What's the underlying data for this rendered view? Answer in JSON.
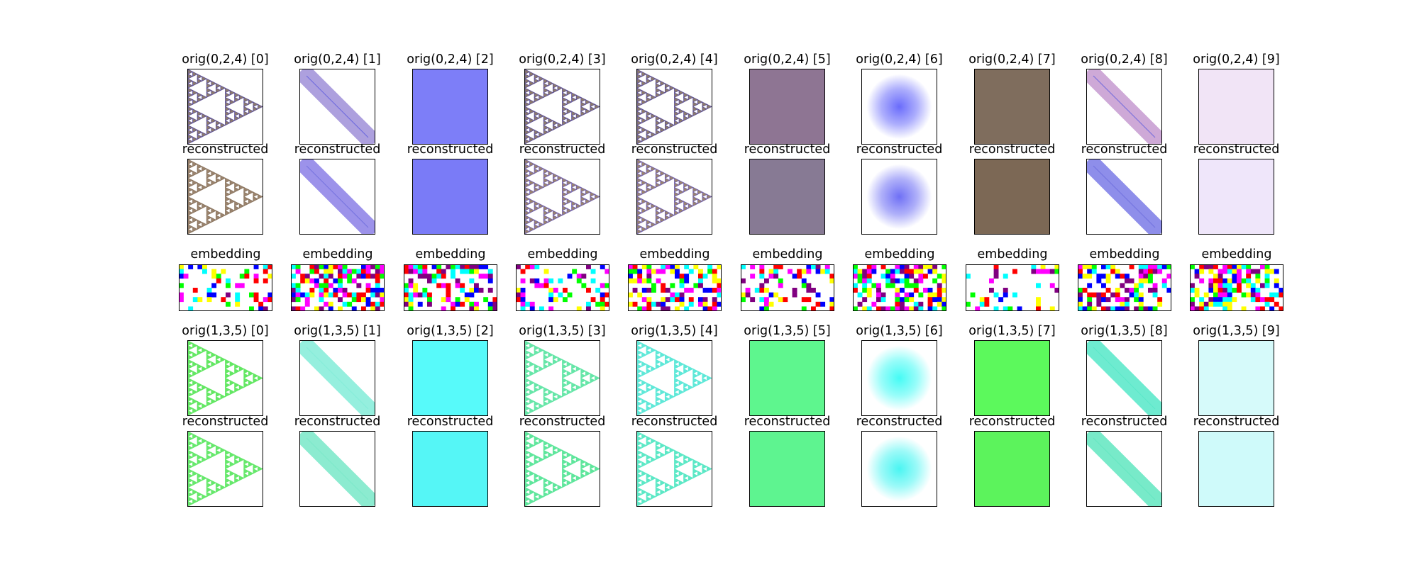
{
  "figure": {
    "groups": [
      {
        "key": "g0",
        "orig_title_prefix": "orig(0,2,4)",
        "recon_title": "reconstructed",
        "panels": [
          {
            "index_label": "[0]",
            "kind": "sierpinski",
            "orig": {
              "fill": "#8c7a6a",
              "edge": "#5b4f9a",
              "bg": "#ffffff"
            },
            "recon": {
              "fill": "#9a836d",
              "edge": "#8a7560",
              "bg": "#ffffff"
            }
          },
          {
            "index_label": "[1]",
            "kind": "diagbar",
            "orig": {
              "fill": "#9f8fd8",
              "edge": "#5a5adf",
              "bg": "#ffffff"
            },
            "recon": {
              "fill": "#8b7fe6",
              "edge": "#6b6bdc",
              "bg": "#ffffff"
            }
          },
          {
            "index_label": "[2]",
            "kind": "solid",
            "orig": {
              "fill": "#7d7ef8",
              "edge": "#7d7ef8",
              "bg": "#7d7ef8"
            },
            "recon": {
              "fill": "#7a7bf7",
              "edge": "#7a7bf7",
              "bg": "#7a7bf7"
            }
          },
          {
            "index_label": "[3]",
            "kind": "sierpinski",
            "orig": {
              "fill": "#8c7a6a",
              "edge": "#5b4f9a",
              "bg": "#ffffff"
            },
            "recon": {
              "fill": "#9a836d",
              "edge": "#7060b0",
              "bg": "#ffffff"
            }
          },
          {
            "index_label": "[4]",
            "kind": "sierpinski",
            "orig": {
              "fill": "#8c7a6a",
              "edge": "#5b4f9a",
              "bg": "#ffffff"
            },
            "recon": {
              "fill": "#9a836d",
              "edge": "#7060b0",
              "bg": "#ffffff"
            }
          },
          {
            "index_label": "[5]",
            "kind": "solid",
            "orig": {
              "fill": "#8e7593",
              "edge": "#8e7593",
              "bg": "#8e7593"
            },
            "recon": {
              "fill": "#877a94",
              "edge": "#877a94",
              "bg": "#877a94"
            }
          },
          {
            "index_label": "[6]",
            "kind": "disk",
            "orig": {
              "fill": "#6a6cfb",
              "edge": "#6a6cfb",
              "bg": "#ffffff"
            },
            "recon": {
              "fill": "#6f70f5",
              "edge": "#6f70f5",
              "bg": "#ffffff"
            }
          },
          {
            "index_label": "[7]",
            "kind": "solid",
            "orig": {
              "fill": "#7f6d5d",
              "edge": "#7f6d5d",
              "bg": "#7f6d5d"
            },
            "recon": {
              "fill": "#7c6855",
              "edge": "#7c6855",
              "bg": "#7c6855"
            }
          },
          {
            "index_label": "[8]",
            "kind": "diagbar",
            "orig": {
              "fill": "#c69ad0",
              "edge": "#5a5adf",
              "bg": "#ffffff"
            },
            "recon": {
              "fill": "#7a7ae6",
              "edge": "#6b6bdc",
              "bg": "#ffffff"
            }
          },
          {
            "index_label": "[9]",
            "kind": "solid",
            "orig": {
              "fill": "#f1e4f6",
              "edge": "#f1e4f6",
              "bg": "#f1e4f6"
            },
            "recon": {
              "fill": "#efe6fa",
              "edge": "#efe6fa",
              "bg": "#efe6fa"
            }
          }
        ]
      },
      {
        "key": "g1",
        "orig_title_prefix": "orig(1,3,5)",
        "recon_title": "reconstructed",
        "panels": [
          {
            "index_label": "[0]",
            "kind": "sierpinski",
            "orig": {
              "fill": "#63e763",
              "edge": "#63e763",
              "bg": "#ffffff"
            },
            "recon": {
              "fill": "#66e86c",
              "edge": "#66e86c",
              "bg": "#ffffff"
            }
          },
          {
            "index_label": "[1]",
            "kind": "diagbar",
            "orig": {
              "fill": "#82ecd8",
              "edge": "#82ecd8",
              "bg": "#ffffff"
            },
            "recon": {
              "fill": "#78e8c8",
              "edge": "#78e8c8",
              "bg": "#ffffff"
            }
          },
          {
            "index_label": "[2]",
            "kind": "solid",
            "orig": {
              "fill": "#57fafa",
              "edge": "#57fafa",
              "bg": "#57fafa"
            },
            "recon": {
              "fill": "#55f6f6",
              "edge": "#55f6f6",
              "bg": "#55f6f6"
            }
          },
          {
            "index_label": "[3]",
            "kind": "sierpinski",
            "orig": {
              "fill": "#66e6a8",
              "edge": "#66e6a8",
              "bg": "#ffffff"
            },
            "recon": {
              "fill": "#5fe69c",
              "edge": "#5fe69c",
              "bg": "#ffffff"
            }
          },
          {
            "index_label": "[4]",
            "kind": "sierpinski",
            "orig": {
              "fill": "#5fe8d8",
              "edge": "#5fe8d8",
              "bg": "#ffffff"
            },
            "recon": {
              "fill": "#5ce8c6",
              "edge": "#5ce8c6",
              "bg": "#ffffff"
            }
          },
          {
            "index_label": "[5]",
            "kind": "solid",
            "orig": {
              "fill": "#5ef68e",
              "edge": "#5ef68e",
              "bg": "#5ef68e"
            },
            "recon": {
              "fill": "#5ef490",
              "edge": "#5ef490",
              "bg": "#5ef490"
            }
          },
          {
            "index_label": "[6]",
            "kind": "disk",
            "orig": {
              "fill": "#45fbf5",
              "edge": "#45fbf5",
              "bg": "#ffffff"
            },
            "recon": {
              "fill": "#4af5f2",
              "edge": "#4af5f2",
              "bg": "#ffffff"
            }
          },
          {
            "index_label": "[7]",
            "kind": "solid",
            "orig": {
              "fill": "#5cf95c",
              "edge": "#5cf95c",
              "bg": "#5cf95c"
            },
            "recon": {
              "fill": "#5cf35c",
              "edge": "#5cf35c",
              "bg": "#5cf35c"
            }
          },
          {
            "index_label": "[8]",
            "kind": "diagbar",
            "orig": {
              "fill": "#55e8c8",
              "edge": "#55e8c8",
              "bg": "#ffffff"
            },
            "recon": {
              "fill": "#60e6c0",
              "edge": "#60e6c0",
              "bg": "#ffffff"
            }
          },
          {
            "index_label": "[9]",
            "kind": "solid",
            "orig": {
              "fill": "#d6fafa",
              "edge": "#d6fafa",
              "bg": "#d6fafa"
            },
            "recon": {
              "fill": "#cffafa",
              "edge": "#cffafa",
              "bg": "#cffafa"
            }
          }
        ]
      }
    ],
    "embedding": {
      "title": "embedding",
      "cols": 20,
      "rows": 10,
      "palette": [
        "#ff00ff",
        "#ffff00",
        "#00ffff",
        "#00ff00",
        "#ff0000",
        "#0000ff",
        "#800080"
      ],
      "densities": [
        0.26,
        0.62,
        0.45,
        0.3,
        0.5,
        0.3,
        0.55,
        0.22,
        0.52,
        0.6
      ],
      "seeds": [
        11,
        23,
        37,
        41,
        53,
        67,
        79,
        83,
        97,
        101
      ]
    }
  }
}
